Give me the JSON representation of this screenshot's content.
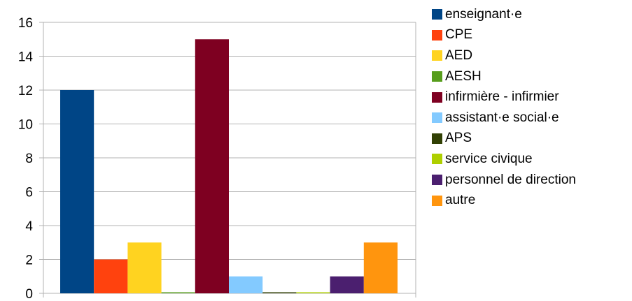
{
  "chart_data": {
    "type": "bar",
    "title": "",
    "xlabel": "",
    "ylabel": "",
    "ylim": [
      0,
      16
    ],
    "yticks": [
      0,
      2,
      4,
      6,
      8,
      10,
      12,
      14,
      16
    ],
    "grid": true,
    "legend_position": "right",
    "categories": [
      ""
    ],
    "series": [
      {
        "name": "enseignant·e",
        "values": [
          12
        ],
        "color": "#004586"
      },
      {
        "name": "CPE",
        "values": [
          2
        ],
        "color": "#ff420e"
      },
      {
        "name": "AED",
        "values": [
          3
        ],
        "color": "#ffd320"
      },
      {
        "name": "AESH",
        "values": [
          0
        ],
        "color": "#579d1c"
      },
      {
        "name": "infirmière - infirmier",
        "values": [
          15
        ],
        "color": "#7e0021"
      },
      {
        "name": "assistant·e social·e",
        "values": [
          1
        ],
        "color": "#83caff"
      },
      {
        "name": "APS",
        "values": [
          0
        ],
        "color": "#314004"
      },
      {
        "name": "service civique",
        "values": [
          0
        ],
        "color": "#aecf00"
      },
      {
        "name": "personnel de direction",
        "values": [
          1
        ],
        "color": "#4b1f6f"
      },
      {
        "name": "autre",
        "values": [
          3
        ],
        "color": "#ff950e"
      }
    ]
  }
}
